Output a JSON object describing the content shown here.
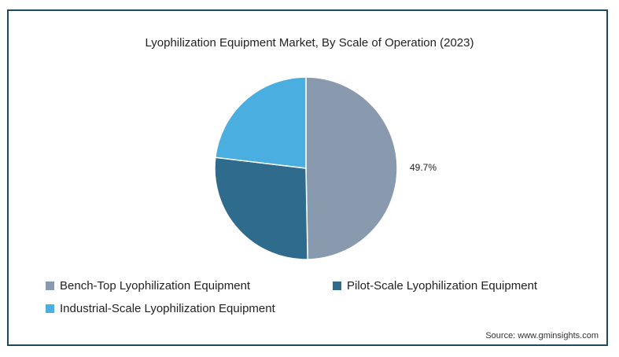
{
  "chart_data": {
    "type": "pie",
    "title": "Lyophilization Equipment Market, By Scale of Operation (2023)",
    "slices": [
      {
        "name": "Bench-Top Lyophilization Equipment",
        "value": 49.7,
        "label": "49.7%",
        "color": "#8a9aae"
      },
      {
        "name": "Pilot-Scale Lyophilization Equipment",
        "value": 27.2,
        "label": "",
        "color": "#2e6b8c"
      },
      {
        "name": "Industrial-Scale Lyophilization Equipment",
        "value": 23.1,
        "label": "",
        "color": "#4aaee0"
      }
    ],
    "legend_position": "bottom-left"
  },
  "source": "Source: www.gminsights.com"
}
